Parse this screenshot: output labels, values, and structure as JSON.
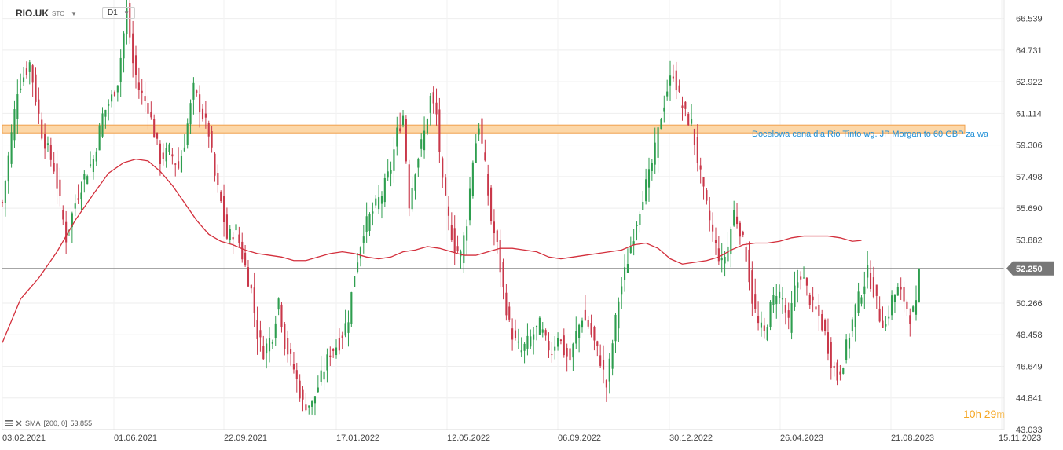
{
  "header": {
    "symbol": "RIO.UK",
    "symbol_tag": "STC",
    "timeframe": "D1"
  },
  "current_price_label": "52.250",
  "indicator": {
    "name": "SMA",
    "params": "[200,  0]",
    "value": "53.855"
  },
  "countdown": {
    "hours": "10",
    "hours_unit": "h",
    "minutes": "29",
    "minutes_unit": "m"
  },
  "annotation": "Docelowa cena dla Rio Tinto wg. JP Morgan to 60 GBP za wa",
  "colors": {
    "up": "#2e9e4f",
    "down": "#c9384a",
    "sma": "#d32f3c",
    "zone_fill": "#fcd7a8",
    "zone_border": "#f0a04b",
    "price_line": "#888888",
    "annotation": "#1f8fd6",
    "countdown": "#f5a623"
  },
  "chart_data": {
    "type": "candlestick",
    "y_ticks": [
      "66.539",
      "64.731",
      "62.922",
      "61.114",
      "59.306",
      "57.498",
      "55.690",
      "53.882",
      "52.250",
      "50.266",
      "48.458",
      "46.649",
      "44.841",
      "43.033"
    ],
    "x_ticks": [
      "03.02.2021",
      "01.06.2021",
      "22.09.2021",
      "17.01.2022",
      "12.05.2022",
      "06.09.2022",
      "30.12.2022",
      "26.04.2023",
      "21.08.2023",
      "15.11.2023"
    ],
    "ylim": [
      43.033,
      67.6
    ],
    "zone": [
      60.0,
      60.45
    ],
    "last_price": 52.25,
    "grid": true,
    "close_path": [
      [
        0,
        56
      ],
      [
        5,
        62.5
      ],
      [
        9,
        64
      ],
      [
        13,
        60
      ],
      [
        17,
        58
      ],
      [
        19,
        56
      ],
      [
        21,
        54
      ],
      [
        24,
        56
      ],
      [
        27,
        57.5
      ],
      [
        30,
        58.5
      ],
      [
        33,
        61
      ],
      [
        36,
        62
      ],
      [
        38,
        63
      ],
      [
        41,
        67
      ],
      [
        43,
        64
      ],
      [
        45,
        62.5
      ],
      [
        48,
        61.5
      ],
      [
        50,
        60
      ],
      [
        52,
        58.5
      ],
      [
        55,
        59
      ],
      [
        58,
        58
      ],
      [
        60,
        59.5
      ],
      [
        63,
        62.5
      ],
      [
        66,
        61
      ],
      [
        68,
        60
      ],
      [
        70,
        57.5
      ],
      [
        72,
        56
      ],
      [
        74,
        54
      ],
      [
        77,
        54.5
      ],
      [
        79,
        53
      ],
      [
        82,
        51
      ],
      [
        84,
        48.5
      ],
      [
        86,
        47.5
      ],
      [
        89,
        48.5
      ],
      [
        91,
        50.5
      ],
      [
        93,
        48
      ],
      [
        96,
        46.5
      ],
      [
        99,
        44.5
      ],
      [
        102,
        44.5
      ],
      [
        105,
        46
      ],
      [
        108,
        47.5
      ],
      [
        111,
        48
      ],
      [
        114,
        49.5
      ],
      [
        116,
        52
      ],
      [
        119,
        54.5
      ],
      [
        122,
        55.5
      ],
      [
        125,
        56.5
      ],
      [
        128,
        58
      ],
      [
        130,
        60
      ],
      [
        132,
        61
      ],
      [
        134,
        56
      ],
      [
        136,
        58
      ],
      [
        139,
        60
      ],
      [
        141,
        62
      ],
      [
        143,
        61
      ],
      [
        145,
        57
      ],
      [
        147,
        55
      ],
      [
        149,
        53.5
      ],
      [
        151,
        53
      ],
      [
        153,
        55
      ],
      [
        155,
        58.5
      ],
      [
        157,
        60.5
      ],
      [
        159,
        58
      ],
      [
        161,
        55
      ],
      [
        163,
        53.5
      ],
      [
        165,
        51
      ],
      [
        167,
        49
      ],
      [
        169,
        48
      ],
      [
        171,
        47.5
      ],
      [
        173,
        48
      ],
      [
        175,
        48.5
      ],
      [
        177,
        49
      ],
      [
        179,
        48
      ],
      [
        181,
        47.5
      ],
      [
        183,
        48.5
      ],
      [
        185,
        47.5
      ],
      [
        187,
        47
      ],
      [
        189,
        48.5
      ],
      [
        191,
        49.5
      ],
      [
        193,
        49
      ],
      [
        195,
        48
      ],
      [
        197,
        47
      ],
      [
        199,
        45.5
      ],
      [
        201,
        48
      ],
      [
        203,
        50.5
      ],
      [
        205,
        52
      ],
      [
        207,
        53.5
      ],
      [
        209,
        55
      ],
      [
        211,
        56.5
      ],
      [
        213,
        57.5
      ],
      [
        215,
        59
      ],
      [
        217,
        61
      ],
      [
        219,
        62.5
      ],
      [
        221,
        63.5
      ],
      [
        223,
        62
      ],
      [
        225,
        61
      ],
      [
        227,
        60.5
      ],
      [
        229,
        58.5
      ],
      [
        231,
        56.5
      ],
      [
        233,
        55
      ],
      [
        235,
        53.5
      ],
      [
        237,
        52.5
      ],
      [
        239,
        53.5
      ],
      [
        241,
        55.5
      ],
      [
        243,
        54.5
      ],
      [
        245,
        53
      ],
      [
        247,
        50.5
      ],
      [
        249,
        49
      ],
      [
        251,
        48.5
      ],
      [
        253,
        50
      ],
      [
        255,
        51
      ],
      [
        257,
        50.5
      ],
      [
        259,
        49
      ],
      [
        261,
        51
      ],
      [
        263,
        52
      ],
      [
        265,
        51
      ],
      [
        267,
        50
      ],
      [
        269,
        49.5
      ],
      [
        271,
        48.5
      ],
      [
        273,
        47
      ],
      [
        275,
        46
      ],
      [
        277,
        47
      ],
      [
        279,
        48.5
      ],
      [
        281,
        50
      ],
      [
        283,
        51
      ],
      [
        285,
        52
      ],
      [
        287,
        51
      ],
      [
        289,
        49.5
      ],
      [
        291,
        49
      ],
      [
        293,
        50.5
      ],
      [
        295,
        51
      ],
      [
        297,
        50.5
      ],
      [
        299,
        49.5
      ],
      [
        301,
        50
      ]
    ],
    "sma_path": [
      [
        0,
        48
      ],
      [
        6,
        50.5
      ],
      [
        12,
        51.7
      ],
      [
        18,
        53.2
      ],
      [
        24,
        55
      ],
      [
        30,
        56.5
      ],
      [
        35,
        57.7
      ],
      [
        40,
        58.3
      ],
      [
        44,
        58.5
      ],
      [
        48,
        58.4
      ],
      [
        52,
        57.8
      ],
      [
        56,
        57
      ],
      [
        60,
        56
      ],
      [
        64,
        55
      ],
      [
        68,
        54.2
      ],
      [
        72,
        53.8
      ],
      [
        76,
        53.6
      ],
      [
        80,
        53.3
      ],
      [
        84,
        53.1
      ],
      [
        88,
        53.0
      ],
      [
        92,
        52.9
      ],
      [
        96,
        52.7
      ],
      [
        100,
        52.7
      ],
      [
        104,
        52.9
      ],
      [
        108,
        53.1
      ],
      [
        112,
        53.2
      ],
      [
        116,
        53.1
      ],
      [
        120,
        52.9
      ],
      [
        124,
        52.8
      ],
      [
        128,
        52.9
      ],
      [
        132,
        53.2
      ],
      [
        136,
        53.3
      ],
      [
        140,
        53.5
      ],
      [
        144,
        53.4
      ],
      [
        148,
        53.2
      ],
      [
        152,
        53.0
      ],
      [
        156,
        53.0
      ],
      [
        160,
        53.2
      ],
      [
        164,
        53.4
      ],
      [
        168,
        53.4
      ],
      [
        172,
        53.3
      ],
      [
        176,
        53.2
      ],
      [
        180,
        52.9
      ],
      [
        184,
        52.8
      ],
      [
        188,
        52.9
      ],
      [
        192,
        53.0
      ],
      [
        196,
        53.1
      ],
      [
        200,
        53.2
      ],
      [
        204,
        53.3
      ],
      [
        208,
        53.6
      ],
      [
        212,
        53.7
      ],
      [
        216,
        53.4
      ],
      [
        220,
        52.8
      ],
      [
        224,
        52.5
      ],
      [
        228,
        52.6
      ],
      [
        232,
        52.7
      ],
      [
        236,
        52.9
      ],
      [
        240,
        53.3
      ],
      [
        244,
        53.6
      ],
      [
        248,
        53.7
      ],
      [
        252,
        53.7
      ],
      [
        256,
        53.8
      ],
      [
        260,
        54.0
      ],
      [
        264,
        54.1
      ],
      [
        268,
        54.1
      ],
      [
        272,
        54.1
      ],
      [
        276,
        54.0
      ],
      [
        280,
        53.8
      ],
      [
        283,
        53.85
      ]
    ]
  }
}
